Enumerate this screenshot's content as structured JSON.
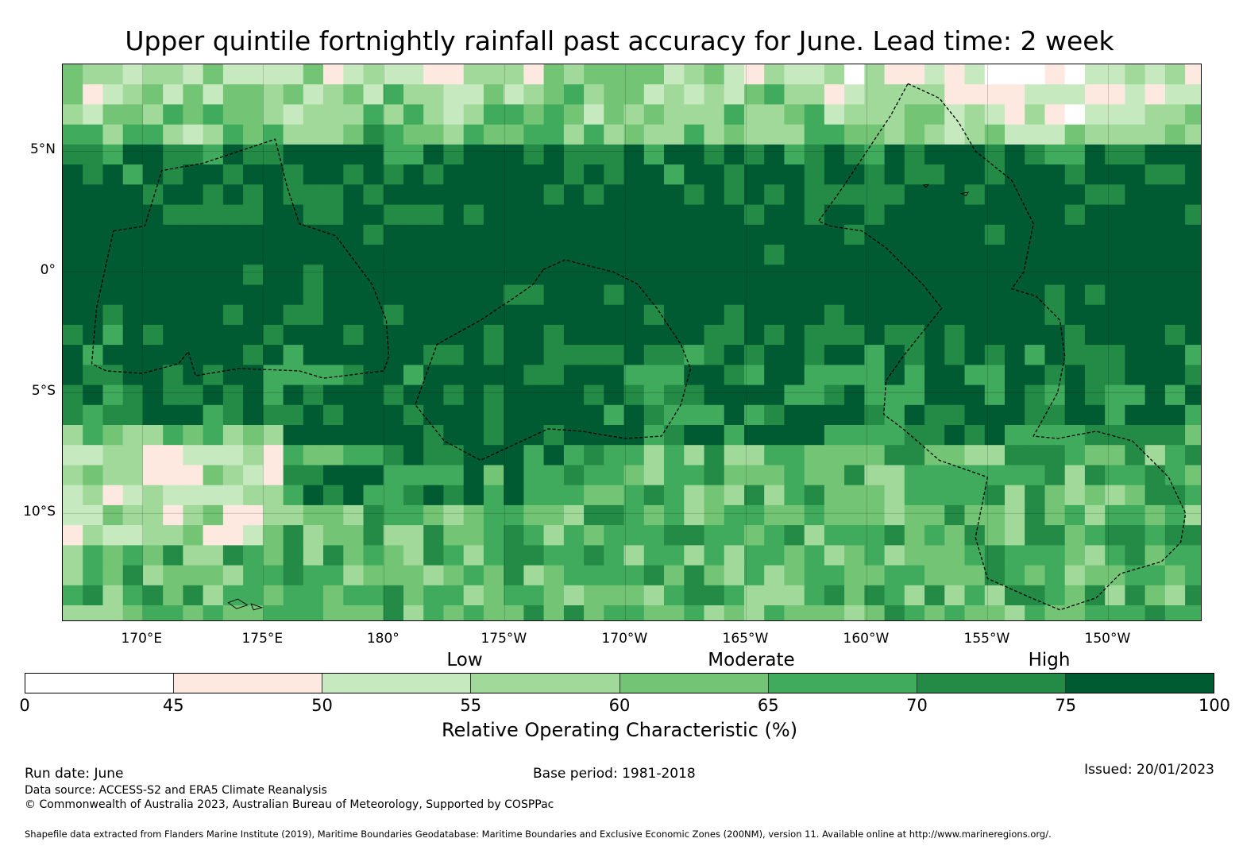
{
  "title": "Upper quintile fortnightly rainfall past accuracy for June. Lead time: 2 week",
  "map": {
    "extent": {
      "lon_min": 166.7,
      "lon_max": 213.9,
      "lat_min": -14.5,
      "lat_max": 8.6
    },
    "grid_cell_deg": 0.83,
    "lat_labels": [
      {
        "text": "5°N",
        "lat": 5
      },
      {
        "text": "0°",
        "lat": 0
      },
      {
        "text": "5°S",
        "lat": -5
      },
      {
        "text": "10°S",
        "lat": -10
      }
    ],
    "lon_labels": [
      {
        "text": "170°E",
        "lon": 170
      },
      {
        "text": "175°E",
        "lon": 175
      },
      {
        "text": "180°",
        "lon": 180
      },
      {
        "text": "175°W",
        "lon": 185
      },
      {
        "text": "170°W",
        "lon": 190
      },
      {
        "text": "165°W",
        "lon": 195
      },
      {
        "text": "160°W",
        "lon": 200
      },
      {
        "text": "155°W",
        "lon": 205
      },
      {
        "text": "150°W",
        "lon": 210
      }
    ],
    "eez_boundaries": [
      {
        "name": "west-zone",
        "points": [
          [
            168.8,
            1.7
          ],
          [
            170.1,
            1.9
          ],
          [
            170.8,
            4.2
          ],
          [
            172.5,
            4.5
          ],
          [
            175.5,
            5.5
          ],
          [
            176.0,
            3.5
          ],
          [
            176.5,
            2.0
          ],
          [
            178.0,
            1.5
          ],
          [
            179.5,
            -0.5
          ],
          [
            180.1,
            -2.0
          ],
          [
            180.2,
            -3.5
          ],
          [
            180.0,
            -4.1
          ],
          [
            177.5,
            -4.4
          ],
          [
            176.5,
            -4.1
          ],
          [
            174.0,
            -4.0
          ],
          [
            172.2,
            -4.3
          ],
          [
            171.9,
            -3.3
          ],
          [
            171.5,
            -3.8
          ],
          [
            170.0,
            -4.2
          ],
          [
            168.5,
            -4.1
          ],
          [
            167.9,
            -3.8
          ],
          [
            168.1,
            -1.5
          ],
          [
            168.8,
            1.7
          ]
        ]
      },
      {
        "name": "central-zone",
        "points": [
          [
            186.6,
            0.1
          ],
          [
            187.5,
            0.5
          ],
          [
            189.5,
            0.0
          ],
          [
            190.5,
            -0.5
          ],
          [
            191.3,
            -1.5
          ],
          [
            192.3,
            -3.0
          ],
          [
            192.7,
            -4.0
          ],
          [
            192.3,
            -5.5
          ],
          [
            191.5,
            -6.8
          ],
          [
            190.0,
            -6.9
          ],
          [
            188.2,
            -6.6
          ],
          [
            186.8,
            -6.5
          ],
          [
            184.0,
            -7.8
          ],
          [
            182.5,
            -7.0
          ],
          [
            181.3,
            -5.5
          ],
          [
            182.2,
            -3.0
          ],
          [
            184.0,
            -2.0
          ],
          [
            185.5,
            -1.0
          ],
          [
            186.2,
            -0.5
          ],
          [
            186.6,
            0.1
          ]
        ]
      },
      {
        "name": "east-zone",
        "points": [
          [
            201.7,
            7.8
          ],
          [
            203.0,
            7.2
          ],
          [
            203.8,
            6.2
          ],
          [
            204.5,
            5.0
          ],
          [
            206.0,
            3.8
          ],
          [
            206.9,
            2.0
          ],
          [
            206.5,
            0.0
          ],
          [
            206.0,
            -0.7
          ],
          [
            207.0,
            -1.0
          ],
          [
            208.0,
            -2.0
          ],
          [
            208.2,
            -3.5
          ],
          [
            207.9,
            -5.0
          ],
          [
            206.9,
            -6.8
          ],
          [
            207.9,
            -6.9
          ],
          [
            209.5,
            -6.6
          ],
          [
            211.0,
            -7.0
          ],
          [
            212.5,
            -8.5
          ],
          [
            213.2,
            -10.0
          ],
          [
            213.0,
            -11.2
          ],
          [
            212.2,
            -12.0
          ],
          [
            210.5,
            -12.5
          ],
          [
            209.5,
            -13.5
          ],
          [
            208.0,
            -14.0
          ],
          [
            206.8,
            -13.5
          ],
          [
            205.0,
            -12.7
          ],
          [
            204.5,
            -11.0
          ],
          [
            204.8,
            -9.5
          ],
          [
            205.0,
            -8.5
          ],
          [
            203.0,
            -7.8
          ],
          [
            201.5,
            -6.5
          ],
          [
            200.7,
            -5.9
          ],
          [
            200.8,
            -4.5
          ],
          [
            201.5,
            -3.5
          ],
          [
            202.3,
            -2.5
          ],
          [
            203.1,
            -1.5
          ],
          [
            202.3,
            -0.5
          ],
          [
            201.5,
            0.3
          ],
          [
            200.8,
            1.0
          ],
          [
            199.8,
            1.7
          ],
          [
            198.5,
            1.9
          ],
          [
            198.0,
            2.1
          ],
          [
            199.0,
            3.5
          ],
          [
            200.0,
            5.0
          ],
          [
            201.0,
            6.5
          ],
          [
            201.7,
            7.8
          ]
        ]
      }
    ],
    "islands": [
      [
        [
          173.55,
          -13.7
        ],
        [
          173.95,
          -13.55
        ],
        [
          174.35,
          -13.8
        ],
        [
          173.9,
          -13.95
        ]
      ],
      [
        [
          174.5,
          -13.75
        ],
        [
          174.95,
          -13.9
        ],
        [
          174.6,
          -14.0
        ]
      ],
      [
        [
          203.9,
          3.25
        ],
        [
          204.1,
          3.15
        ],
        [
          204.2,
          3.3
        ]
      ],
      [
        [
          202.35,
          3.6
        ],
        [
          202.45,
          3.5
        ],
        [
          202.55,
          3.62
        ]
      ]
    ]
  },
  "colorbar": {
    "category_labels": [
      "Low",
      "Moderate",
      "High"
    ],
    "ticks": [
      "0",
      "45",
      "50",
      "55",
      "60",
      "65",
      "70",
      "75",
      "100"
    ],
    "bins": [
      {
        "from": 0,
        "to": 45,
        "color": "#ffffff"
      },
      {
        "from": 45,
        "to": 50,
        "color": "#fee9e0"
      },
      {
        "from": 50,
        "to": 55,
        "color": "#c7e9c0"
      },
      {
        "from": 55,
        "to": 60,
        "color": "#a1d99b"
      },
      {
        "from": 60,
        "to": 65,
        "color": "#74c476"
      },
      {
        "from": 65,
        "to": 70,
        "color": "#41ab5d"
      },
      {
        "from": 70,
        "to": 75,
        "color": "#238b45"
      },
      {
        "from": 75,
        "to": 100,
        "color": "#005a32"
      }
    ],
    "label": "Relative Operating Characteristic (%)"
  },
  "footer": {
    "run_date": "Run date: June",
    "base_period": "Base period: 1981-2018",
    "issued": "Issued: 20/01/2023",
    "data_source": "Data source: ACCESS-S2 and ERA5 Climate Reanalysis",
    "copyright": "© Commonwealth of Australia 2023, Australian Bureau of Meteorology, Supported by COSPPac",
    "shapefile": "Shapefile data extracted from Flanders Marine Institute (2019), Maritime Boundaries Geodatabase: Maritime Boundaries and Exclusive Economic Zones (200NM), version 11. Available online at http://www.marineregions.org/."
  }
}
